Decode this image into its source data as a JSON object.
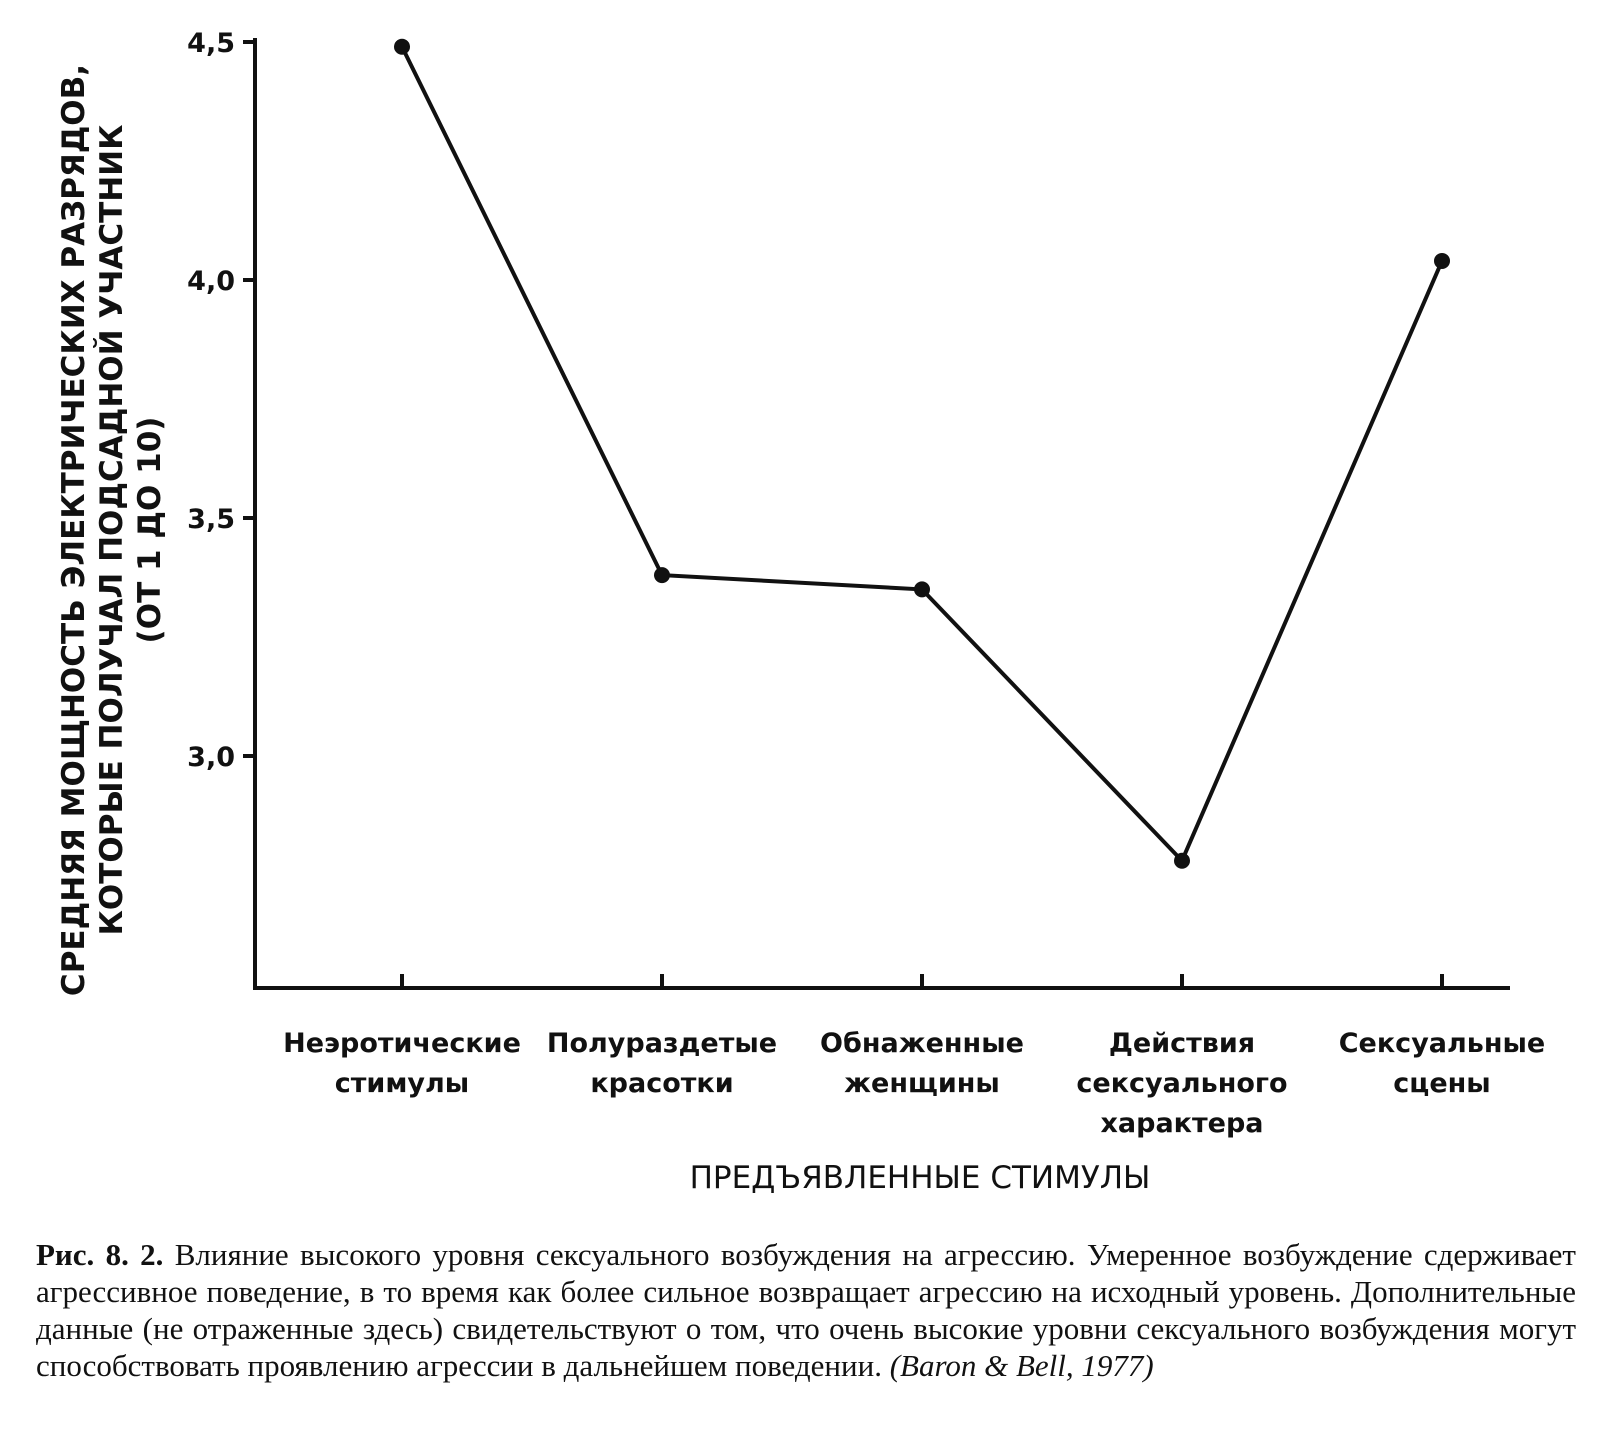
{
  "chart_data": {
    "type": "line",
    "categories": [
      [
        "Неэротические",
        "стимулы"
      ],
      [
        "Полураздетые",
        "красотки"
      ],
      [
        "Обнаженные",
        "женщины"
      ],
      [
        "Действия",
        "сексуального",
        "характера"
      ],
      [
        "Сексуальные",
        "сцены"
      ]
    ],
    "values": [
      4.49,
      3.38,
      3.35,
      2.78,
      4.04
    ],
    "yticks": [
      "4,5",
      "4,0",
      "3,5",
      "3,0"
    ],
    "ytick_values": [
      4.5,
      4.0,
      3.5,
      3.0
    ],
    "ylim": [
      2.5,
      4.5
    ],
    "ylabel": [
      "СРЕДНЯЯ МОЩНОСТЬ ЭЛЕКТРИЧЕСКИХ РАЗРЯДОВ,",
      "КОТОРЫЕ ПОЛУЧАЛ ПОДСАДНОЙ УЧАСТНИК",
      "(ОТ 1 ДО 10)"
    ],
    "xlabel": "ПРЕДЪЯВЛЕННЫЕ СТИМУЛЫ"
  },
  "caption": {
    "label": "Рис. 8. 2.",
    "text": " Влияние высокого уровня сексуального возбуждения на агрессию. Умеренное возбуждение сдерживает агрессивное поведение, в то время как более сильное возвращает агрессию на исходный уровень. Дополнительные данные (не отраженные здесь) свидетельствуют о том, что очень высокие уровни сексуального возбуждения могут способствовать проявлению агрессии в дальнейшем поведении. ",
    "citation": "(Baron & Bell, 1977)"
  }
}
